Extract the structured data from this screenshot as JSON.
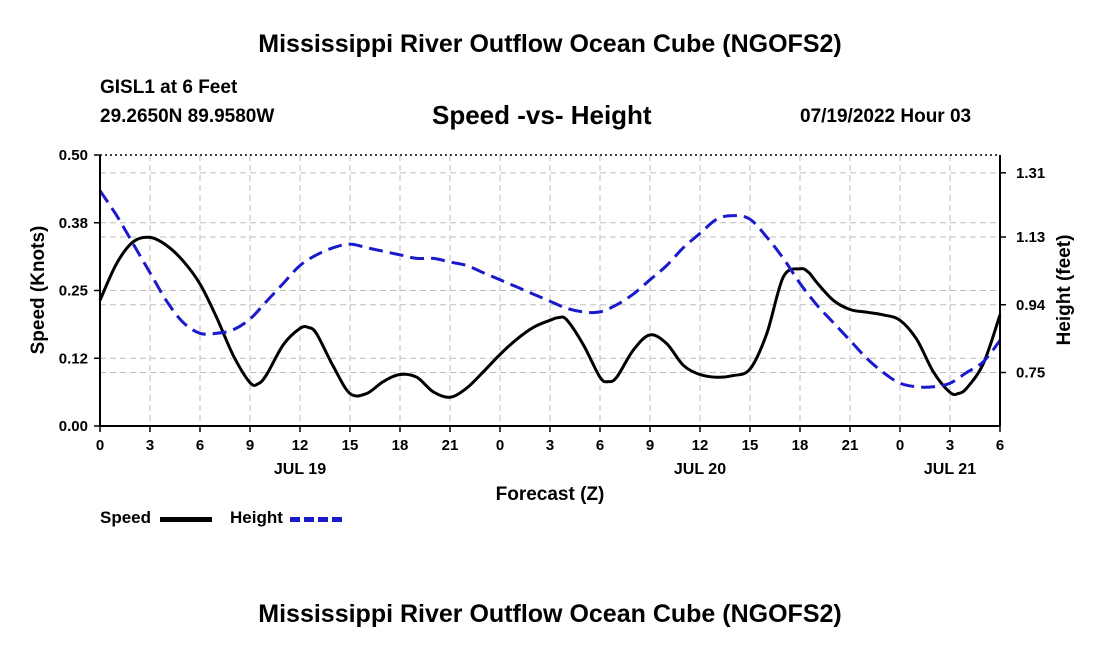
{
  "header": {
    "title": "Mississippi River Outflow Ocean Cube (NGOFS2)",
    "station": "GISL1 at 6 Feet",
    "coords": "29.2650N  89.9580W",
    "subtitle": "Speed -vs- Height",
    "datetime": "07/19/2022 Hour 03"
  },
  "footer": {
    "title": "Mississippi River Outflow Ocean Cube (NGOFS2)"
  },
  "legend": {
    "speed_label": "Speed",
    "height_label": "Height"
  },
  "chart_data": {
    "type": "line",
    "xlabel": "Forecast (Z)",
    "ylabel": "Speed (Knots)",
    "y2label": "Height (feet)",
    "xlim": [
      0,
      54
    ],
    "ylim": [
      0,
      0.5
    ],
    "y2lim": [
      0.6,
      1.36
    ],
    "xticks": [
      0,
      3,
      6,
      9,
      12,
      15,
      18,
      21,
      24,
      27,
      30,
      33,
      36,
      39,
      42,
      45,
      48,
      51,
      54
    ],
    "xtick_labels": [
      "0",
      "3",
      "6",
      "9",
      "12",
      "15",
      "18",
      "21",
      "0",
      "3",
      "6",
      "9",
      "12",
      "15",
      "18",
      "21",
      "0",
      "3",
      "6"
    ],
    "yticks": [
      0,
      0.125,
      0.25,
      0.375,
      0.5
    ],
    "ytick_labels": [
      "0.00",
      "0.12",
      "0.25",
      "0.38",
      "0.50"
    ],
    "y2ticks": [
      0.75,
      0.94,
      1.13,
      1.31
    ],
    "y2tick_labels": [
      "0.75",
      "0.94",
      "1.13",
      "1.31"
    ],
    "date_labels": [
      {
        "x": 12,
        "label": "JUL 19"
      },
      {
        "x": 36,
        "label": "JUL 20"
      },
      {
        "x": 51,
        "label": "JUL 21"
      }
    ],
    "grid": true,
    "series": [
      {
        "name": "Speed",
        "axis": "left",
        "color": "#000000",
        "style": "solid",
        "x": [
          0,
          1,
          2,
          3,
          4,
          5,
          6,
          7,
          8,
          9,
          9.5,
          10,
          11,
          12,
          12.5,
          13,
          14,
          15,
          16,
          17,
          18,
          19,
          20,
          21,
          22,
          23,
          24,
          25,
          26,
          27,
          27.5,
          28,
          29,
          30,
          30.5,
          31,
          32,
          33,
          34,
          35,
          36,
          37,
          38,
          39,
          40,
          41,
          42,
          42.5,
          43,
          44,
          45,
          46,
          47,
          48,
          49,
          50,
          51,
          51.5,
          52,
          53,
          54
        ],
        "y": [
          0.232,
          0.3,
          0.34,
          0.348,
          0.333,
          0.304,
          0.262,
          0.2,
          0.13,
          0.08,
          0.078,
          0.095,
          0.15,
          0.18,
          0.182,
          0.17,
          0.11,
          0.06,
          0.06,
          0.082,
          0.095,
          0.09,
          0.063,
          0.053,
          0.07,
          0.1,
          0.132,
          0.16,
          0.182,
          0.195,
          0.2,
          0.196,
          0.15,
          0.09,
          0.082,
          0.09,
          0.14,
          0.168,
          0.152,
          0.112,
          0.095,
          0.09,
          0.093,
          0.105,
          0.17,
          0.275,
          0.29,
          0.284,
          0.265,
          0.232,
          0.215,
          0.21,
          0.205,
          0.195,
          0.16,
          0.1,
          0.062,
          0.06,
          0.07,
          0.115,
          0.205
        ]
      },
      {
        "name": "Height",
        "axis": "right",
        "color": "#1a1acc",
        "style": "dashed",
        "x": [
          0,
          1,
          2,
          3,
          4,
          5,
          6,
          7,
          8,
          9,
          10,
          11,
          12,
          13,
          14,
          15,
          16,
          17,
          18,
          19,
          20,
          21,
          22,
          23,
          24,
          25,
          26,
          27,
          28,
          29,
          30,
          31,
          32,
          33,
          34,
          35,
          36,
          37,
          38,
          39,
          40,
          41,
          42,
          43,
          44,
          45,
          46,
          47,
          48,
          49,
          50,
          51,
          52,
          53,
          54
        ],
        "y": [
          1.26,
          1.19,
          1.11,
          1.03,
          0.95,
          0.89,
          0.86,
          0.86,
          0.87,
          0.9,
          0.95,
          1.0,
          1.05,
          1.08,
          1.1,
          1.11,
          1.1,
          1.09,
          1.08,
          1.07,
          1.07,
          1.06,
          1.05,
          1.03,
          1.01,
          0.99,
          0.97,
          0.95,
          0.93,
          0.92,
          0.92,
          0.94,
          0.97,
          1.01,
          1.05,
          1.1,
          1.14,
          1.18,
          1.19,
          1.18,
          1.13,
          1.07,
          1.0,
          0.94,
          0.89,
          0.84,
          0.79,
          0.75,
          0.72,
          0.71,
          0.71,
          0.72,
          0.75,
          0.78,
          0.84
        ]
      }
    ]
  }
}
